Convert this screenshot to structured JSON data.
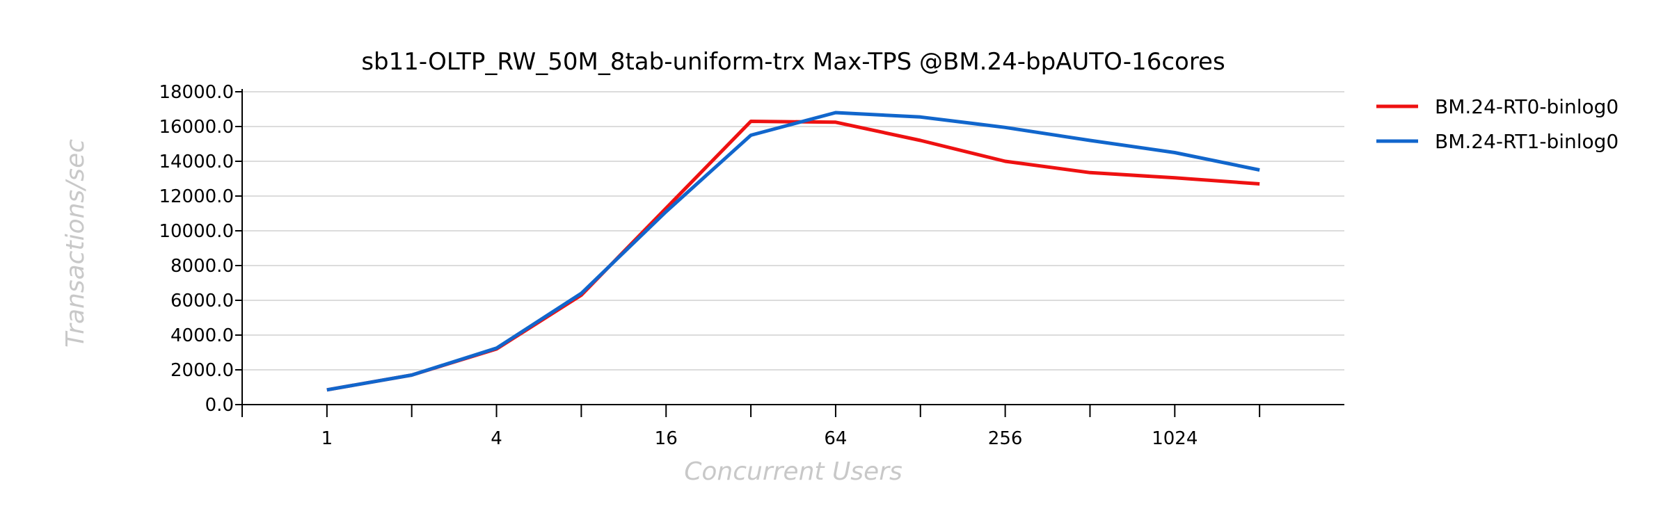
{
  "chart_data": {
    "type": "line",
    "title": "sb11-OLTP_RW_50M_8tab-uniform-trx Max-TPS @BM.24-bpAUTO-16cores",
    "xlabel": "Concurrent Users",
    "ylabel": "Transactions/sec",
    "x_scale": "log2",
    "x": [
      1,
      2,
      4,
      8,
      16,
      32,
      64,
      128,
      256,
      512,
      1024,
      2048
    ],
    "x_ticks": [
      1,
      4,
      16,
      64,
      256,
      1024
    ],
    "x_tick_labels": [
      "1",
      "4",
      "16",
      "64",
      "256",
      "1024"
    ],
    "x_minor_ticks": [
      0.5,
      2,
      8,
      32,
      128,
      512,
      2048
    ],
    "xlim": [
      0.5,
      4096
    ],
    "ylim": [
      0,
      18000
    ],
    "y_ticks": [
      0,
      2000,
      4000,
      6000,
      8000,
      10000,
      12000,
      14000,
      16000,
      18000
    ],
    "y_tick_labels": [
      "0.0",
      "2000.0",
      "4000.0",
      "6000.0",
      "8000.0",
      "10000.0",
      "12000.0",
      "14000.0",
      "16000.0",
      "18000.0"
    ],
    "grid": true,
    "legend_position": "right",
    "series": [
      {
        "name": "BM.24-RT0-binlog0",
        "color": "#ee1111",
        "values": [
          850,
          1700,
          3200,
          6300,
          11300,
          16300,
          16250,
          15200,
          14000,
          13350,
          13050,
          12700
        ]
      },
      {
        "name": "BM.24-RT1-binlog0",
        "color": "#1166cc",
        "values": [
          850,
          1700,
          3250,
          6400,
          11100,
          15500,
          16800,
          16550,
          15950,
          15200,
          14500,
          13500
        ]
      }
    ]
  }
}
